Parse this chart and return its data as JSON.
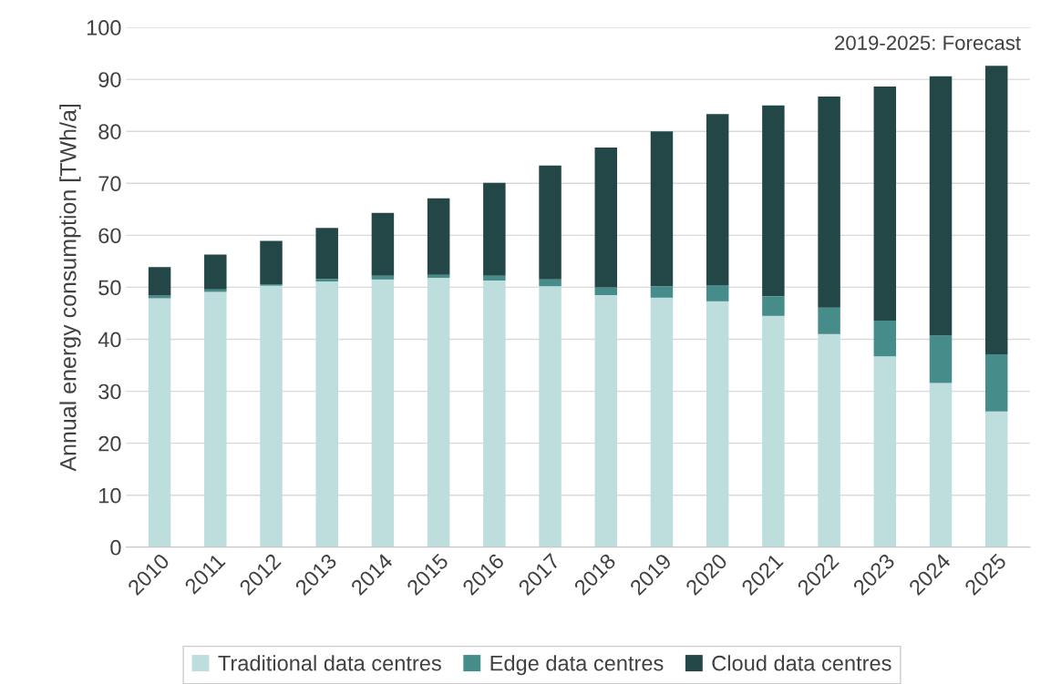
{
  "chart_data": {
    "type": "bar",
    "stacked": true,
    "ylabel": "Annual energy consumption [TWh/a]",
    "annotations": [
      "2019-2025: Forecast"
    ],
    "categories": [
      "2010",
      "2011",
      "2012",
      "2013",
      "2014",
      "2015",
      "2016",
      "2017",
      "2018",
      "2019",
      "2020",
      "2021",
      "2022",
      "2023",
      "2024",
      "2025"
    ],
    "series": [
      {
        "name": "Traditional data centres",
        "color": "#bddedd",
        "values": [
          47.9,
          49.1,
          50.3,
          51.1,
          51.5,
          51.8,
          51.3,
          50.2,
          48.5,
          48.0,
          47.3,
          44.5,
          41.0,
          36.7,
          31.6,
          26.1
        ]
      },
      {
        "name": "Edge data centres",
        "color": "#468c8a",
        "values": [
          0.5,
          0.5,
          0.3,
          0.5,
          0.7,
          0.6,
          0.9,
          1.3,
          1.5,
          2.2,
          3.1,
          3.8,
          5.1,
          6.9,
          9.1,
          11.0
        ]
      },
      {
        "name": "Cloud data centres",
        "color": "#224746",
        "values": [
          5.5,
          6.7,
          8.3,
          9.8,
          12.1,
          14.7,
          17.9,
          21.9,
          26.9,
          29.8,
          32.9,
          36.7,
          40.6,
          45.0,
          49.9,
          55.5
        ]
      }
    ],
    "ylim": [
      0,
      100
    ],
    "yticks": [
      0,
      10,
      20,
      30,
      40,
      50,
      60,
      70,
      80,
      90,
      100
    ],
    "grid": "y",
    "legend": "bottom"
  }
}
